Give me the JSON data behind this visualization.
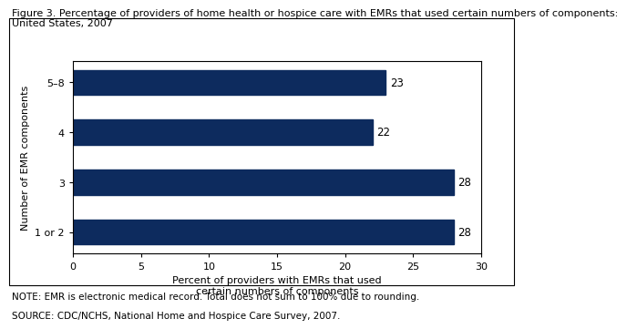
{
  "title_line1": "Figure 3. Percentage of providers of home health or hospice care with EMRs that used certain numbers of components:",
  "title_line2": "United States, 2007",
  "categories": [
    "1 or 2",
    "3",
    "4",
    "5–8"
  ],
  "values": [
    28,
    28,
    22,
    23
  ],
  "bar_color": "#0d2b5e",
  "xlabel_line1": "Percent of providers with EMRs that used",
  "xlabel_line2": "certain numbers of components",
  "ylabel": "Number of EMR components",
  "xlim": [
    0,
    30
  ],
  "xticks": [
    0,
    5,
    10,
    15,
    20,
    25,
    30
  ],
  "note_line1": "NOTE: EMR is electronic medical record. Total does not sum to 100% due to rounding.",
  "note_line2": "SOURCE: CDC/NCHS, National Home and Hospice Care Survey, 2007.",
  "title_fontsize": 8.0,
  "label_fontsize": 8.0,
  "tick_fontsize": 8.0,
  "note_fontsize": 7.5,
  "bar_label_fontsize": 8.5,
  "bar_height": 0.5
}
